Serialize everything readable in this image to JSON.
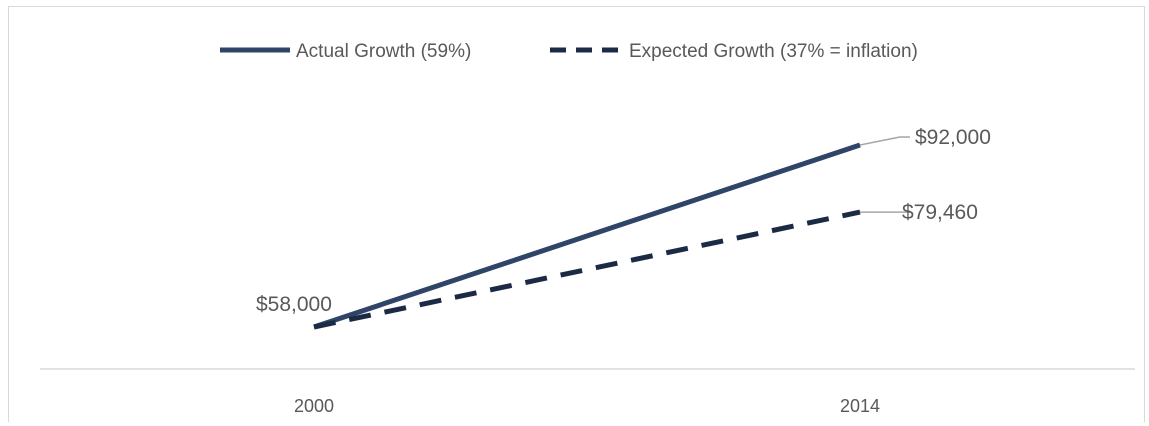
{
  "chart_data": {
    "type": "line",
    "title": "",
    "xlabel": "",
    "ylabel": "",
    "categories": [
      "2000",
      "2014"
    ],
    "ylim": [
      50000,
      100000
    ],
    "grid": false,
    "legend_position": "top-center",
    "series": [
      {
        "name": "Actual Growth (59%)",
        "values": [
          58000,
          92000
        ],
        "style": "solid",
        "color": "#2f4466"
      },
      {
        "name": "Expected Growth (37% = inflation)",
        "values": [
          58000,
          79460
        ],
        "style": "dashed",
        "color": "#1b2a45"
      }
    ],
    "data_labels": [
      {
        "series": 0,
        "point": 0,
        "text": "$58,000"
      },
      {
        "series": 0,
        "point": 1,
        "text": "$92,000"
      },
      {
        "series": 1,
        "point": 1,
        "text": "$79,460"
      }
    ],
    "colors": {
      "axis": "#d9d9d9",
      "text": "#595959",
      "leader": "#a6a6a6"
    }
  }
}
